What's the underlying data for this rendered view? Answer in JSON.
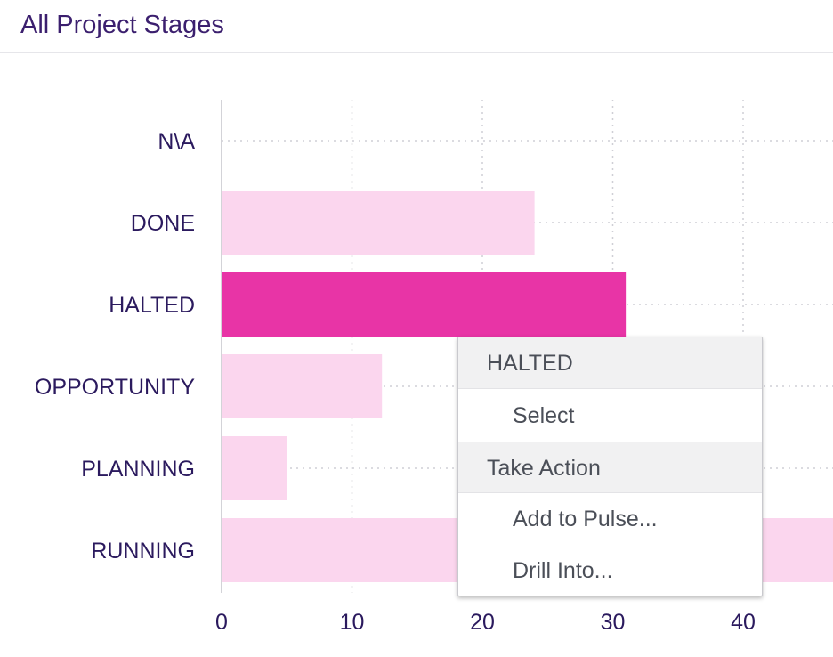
{
  "panel": {
    "title": "All Project Stages"
  },
  "colors": {
    "bar_default": "#fbd6ee",
    "bar_highlight": "#e834a6",
    "grid": "#cfcfd6",
    "axis": "#d3d3d8",
    "label": "#2b1a5e"
  },
  "chart_data": {
    "type": "bar",
    "orientation": "horizontal",
    "categories": [
      "N\\A",
      "DONE",
      "HALTED",
      "OPPORTUNITY",
      "PLANNING",
      "RUNNING"
    ],
    "values": [
      0,
      24,
      31,
      12.3,
      5,
      47
    ],
    "highlighted_category": "HALTED",
    "xticks": [
      0,
      10,
      20,
      30,
      40
    ],
    "xlim": [
      0,
      47
    ],
    "grid": true,
    "title": "",
    "xlabel": "",
    "ylabel": ""
  },
  "context_menu": {
    "header": "HALTED",
    "select_label": "Select",
    "section_label": "Take Action",
    "add_to_pulse_label": "Add to Pulse...",
    "drill_into_label": "Drill Into..."
  }
}
